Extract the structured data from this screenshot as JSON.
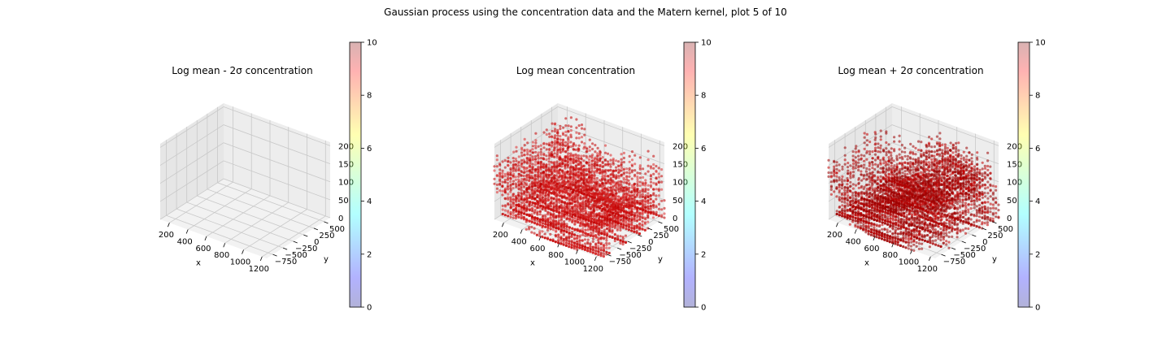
{
  "figure": {
    "suptitle": "Gaussian process using the  concentration data and the Matern kernel, plot 5 of 10"
  },
  "colors": {
    "pane_left": "#e6e6e6",
    "pane_right": "#ededed",
    "pane_floor": "#f2f2f2",
    "grid": "#c8c8c8",
    "marker_dark": "#9b0000",
    "marker_mid": "#c20000",
    "marker_light": "#dc2a2a"
  },
  "chart_data": [
    {
      "type": "scatter3d",
      "title": "Log mean - 2σ concentration",
      "xlabel": "x",
      "ylabel": "y",
      "zlabel": "",
      "xticks": [
        "200",
        "400",
        "600",
        "800",
        "1000",
        "1200"
      ],
      "yticks": [
        "−750",
        "−500",
        "−250",
        "0",
        "250",
        "500"
      ],
      "zticks": [
        "0",
        "50",
        "100",
        "150",
        "200"
      ],
      "xlim": [
        100,
        1250
      ],
      "ylim": [
        -900,
        650
      ],
      "zlim": [
        0,
        210
      ],
      "has_points": false,
      "colorbar": {
        "ticks": [
          "0",
          "2",
          "4",
          "6",
          "8",
          "10"
        ],
        "range": [
          0,
          10
        ]
      }
    },
    {
      "type": "scatter3d",
      "title": "Log mean concentration",
      "xlabel": "x",
      "ylabel": "y",
      "zlabel": "",
      "xticks": [
        "200",
        "400",
        "600",
        "800",
        "1000",
        "1200"
      ],
      "yticks": [
        "−750",
        "−500",
        "−250",
        "0",
        "250",
        "500"
      ],
      "zticks": [
        "0",
        "50",
        "100",
        "150",
        "200"
      ],
      "xlim": [
        100,
        1250
      ],
      "ylim": [
        -900,
        650
      ],
      "zlim": [
        0,
        210
      ],
      "has_points": true,
      "colorbar": {
        "ticks": [
          "0",
          "2",
          "4",
          "6",
          "8",
          "10"
        ],
        "range": [
          0,
          10
        ]
      }
    },
    {
      "type": "scatter3d",
      "title": "Log mean + 2σ concentration",
      "xlabel": "x",
      "ylabel": "y",
      "zlabel": "",
      "xticks": [
        "200",
        "400",
        "600",
        "800",
        "1000",
        "1200"
      ],
      "yticks": [
        "−750",
        "−500",
        "−250",
        "0",
        "250",
        "500"
      ],
      "zticks": [
        "0",
        "50",
        "100",
        "150",
        "200"
      ],
      "xlim": [
        100,
        1250
      ],
      "ylim": [
        -900,
        650
      ],
      "zlim": [
        0,
        210
      ],
      "has_points": true,
      "colorbar": {
        "ticks": [
          "0",
          "2",
          "4",
          "6",
          "8",
          "10"
        ],
        "range": [
          0,
          10
        ]
      }
    }
  ]
}
